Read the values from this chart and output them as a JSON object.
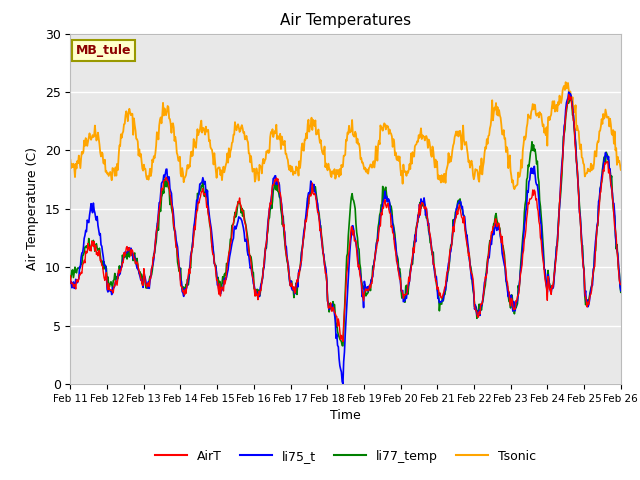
{
  "title": "Air Temperatures",
  "xlabel": "Time",
  "ylabel": "Air Temperature (C)",
  "ylim": [
    0,
    30
  ],
  "annotation_text": "MB_tule",
  "annotation_color": "#8B0000",
  "annotation_bg": "#FFFFCC",
  "annotation_edge": "#999900",
  "grid_color": "white",
  "bg_color": "#E8E8E8",
  "legend_entries": [
    "AirT",
    "li75_t",
    "li77_temp",
    "Tsonic"
  ],
  "line_colors": [
    "red",
    "blue",
    "green",
    "orange"
  ],
  "x_tick_labels": [
    "Feb 11",
    "Feb 12",
    "Feb 13",
    "Feb 14",
    "Feb 15",
    "Feb 16",
    "Feb 17",
    "Feb 18",
    "Feb 19",
    "Feb 20",
    "Feb 21",
    "Feb 22",
    "Feb 23",
    "Feb 24",
    "Feb 25",
    "Feb 26"
  ],
  "n_days": 15,
  "pts_per_day": 48
}
